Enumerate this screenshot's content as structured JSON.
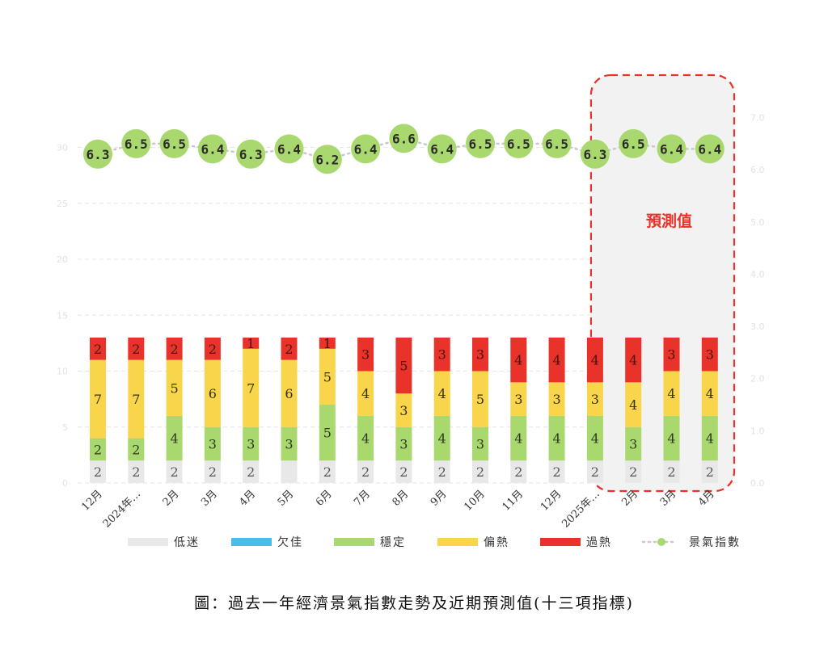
{
  "caption": "圖：過去一年經濟景氣指數走勢及近期預測值(十三項指標)",
  "forecast_label": "預測值",
  "colors": {
    "low": "#e8e8e8",
    "weak": "#4bbbeb",
    "stable": "#a9d86e",
    "warm": "#f8d54a",
    "hot": "#e8322a",
    "index_dot": "#a9d86e",
    "forecast_border": "#e8322a",
    "forecast_fill": "#f2f2f2",
    "forecast_text": "#e8322a"
  },
  "chart_data": {
    "type": "bar",
    "stacked": true,
    "categories": [
      "12月",
      "2024年…",
      "2月",
      "3月",
      "4月",
      "5月",
      "6月",
      "7月",
      "8月",
      "9月",
      "10月",
      "11月",
      "12月",
      "2025年…",
      "2月",
      "3月",
      "4月"
    ],
    "series": [
      {
        "name": "低迷",
        "color_key": "low",
        "values": [
          2,
          2,
          2,
          2,
          2,
          2,
          2,
          2,
          2,
          2,
          2,
          2,
          2,
          2,
          2,
          2,
          2
        ],
        "labels": [
          "2",
          "2",
          "2",
          "2",
          "2",
          "",
          "2",
          "2",
          "2",
          "2",
          "2",
          "2",
          "2",
          "2",
          "2",
          "2",
          "2"
        ]
      },
      {
        "name": "欠佳",
        "color_key": "weak",
        "values": [
          0,
          0,
          0,
          0,
          0,
          0,
          0,
          0,
          0,
          0,
          0,
          0,
          0,
          0,
          0,
          0,
          0
        ],
        "labels": [
          "",
          "",
          "",
          "",
          "",
          "",
          "",
          "",
          "",
          "",
          "",
          "",
          "",
          "",
          "",
          "",
          ""
        ]
      },
      {
        "name": "穩定",
        "color_key": "stable",
        "values": [
          2,
          2,
          4,
          3,
          3,
          3,
          5,
          4,
          3,
          4,
          3,
          4,
          4,
          4,
          3,
          4,
          4
        ],
        "labels": [
          "2",
          "2",
          "4",
          "3",
          "3",
          "3",
          "5",
          "4",
          "3",
          "4",
          "3",
          "4",
          "4",
          "4",
          "3",
          "4",
          "4"
        ]
      },
      {
        "name": "偏熱",
        "color_key": "warm",
        "values": [
          7,
          7,
          5,
          6,
          7,
          6,
          5,
          4,
          3,
          4,
          5,
          3,
          3,
          3,
          4,
          4,
          4
        ],
        "labels": [
          "7",
          "7",
          "5",
          "6",
          "7",
          "6",
          "5",
          "4",
          "3",
          "4",
          "5",
          "3",
          "3",
          "3",
          "4",
          "4",
          "4"
        ]
      },
      {
        "name": "過熱",
        "color_key": "hot",
        "values": [
          2,
          2,
          2,
          2,
          1,
          2,
          1,
          3,
          5,
          3,
          3,
          4,
          4,
          4,
          4,
          3,
          3
        ],
        "labels": [
          "2",
          "2",
          "2",
          "2",
          "1",
          "2",
          "1",
          "3",
          "5",
          "3",
          "3",
          "4",
          "4",
          "4",
          "4",
          "3",
          "3"
        ]
      }
    ],
    "line": {
      "name": "景氣指數",
      "values": [
        6.3,
        6.5,
        6.5,
        6.4,
        6.3,
        6.4,
        6.2,
        6.4,
        6.6,
        6.4,
        6.5,
        6.5,
        6.5,
        6.3,
        6.5,
        6.4,
        6.4
      ],
      "labels": [
        "6.3",
        "6.5",
        "6.5",
        "6.4",
        "6.3",
        "6.4",
        "6.2",
        "6.4",
        "6.6",
        "6.4",
        "6.5",
        "6.5",
        "6.5",
        "6.3",
        "6.5",
        "6.4",
        "6.4"
      ]
    },
    "left_axis": {
      "ylim": [
        0,
        35
      ],
      "ticks": [
        "0",
        "5",
        "10",
        "15",
        "20",
        "25",
        "30"
      ]
    },
    "right_axis": {
      "ylim": [
        0,
        7.5
      ],
      "ticks": [
        "0.0",
        "1.0",
        "2.0",
        "3.0",
        "4.0",
        "5.0",
        "6.0",
        "7.0"
      ]
    },
    "forecast_start_index": 13,
    "grid": true,
    "legend_position": "bottom"
  }
}
